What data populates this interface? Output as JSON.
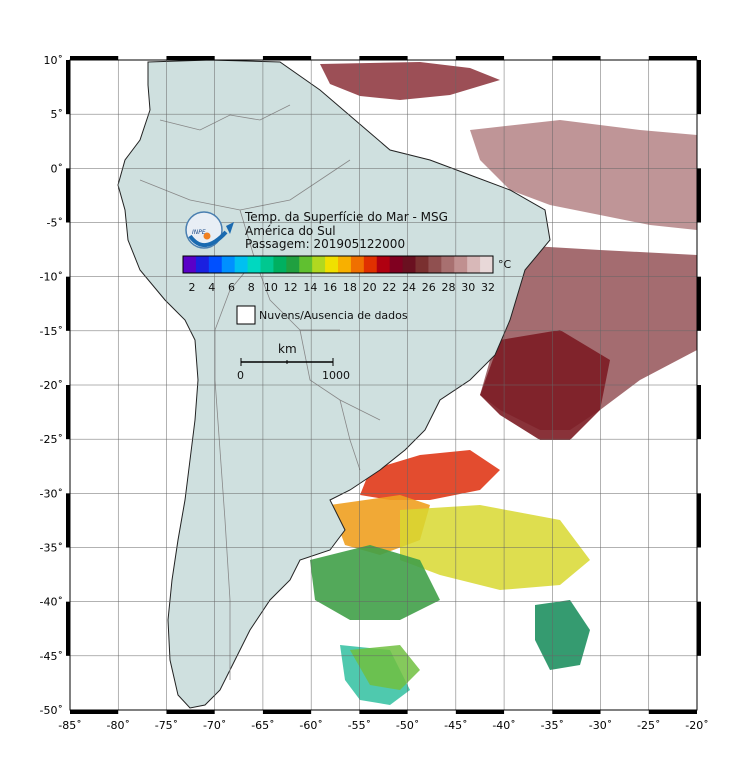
{
  "map": {
    "title": "Temp. da Superfície do Mar - MSG",
    "region": "América do Sul",
    "pass": "Passagem: 201905122000",
    "logo_text": "INPE",
    "lon_labels": [
      "-85˚",
      "-80˚",
      "-75˚",
      "-70˚",
      "-65˚",
      "-60˚",
      "-55˚",
      "-50˚",
      "-45˚",
      "-40˚",
      "-35˚",
      "-30˚",
      "-25˚",
      "-20˚"
    ],
    "lat_labels": [
      "10˚",
      "5˚",
      "0˚",
      "-5˚",
      "-10˚",
      "-15˚",
      "-20˚",
      "-25˚",
      "-30˚",
      "-35˚",
      "-40˚",
      "-45˚",
      "-50˚"
    ],
    "colorbar": {
      "labels": [
        "2",
        "4",
        "6",
        "8",
        "10",
        "12",
        "14",
        "16",
        "18",
        "20",
        "22",
        "24",
        "26",
        "28",
        "30",
        "32"
      ],
      "unit": "°C",
      "colors": [
        "#5a00c8",
        "#1a20e0",
        "#0050ff",
        "#0090ff",
        "#00c0f0",
        "#00d8c0",
        "#00c890",
        "#00b060",
        "#20a040",
        "#60c030",
        "#b0d820",
        "#f0e000",
        "#f8b000",
        "#f07000",
        "#e03000",
        "#b00010",
        "#800020",
        "#6a1020",
        "#7a3030",
        "#905050",
        "#a87070",
        "#c09090",
        "#d8b8b8",
        "#e8d8d8"
      ]
    },
    "colors": {
      "land": "#cfe0df",
      "ocean": "#ffffff",
      "warm_sst": "#8b2c30",
      "pink_sst": "#a06a6e"
    },
    "legend_label": "Nuvens/Ausencia de dados",
    "scale": {
      "unit": "km",
      "start": "0",
      "end": "1000"
    }
  }
}
